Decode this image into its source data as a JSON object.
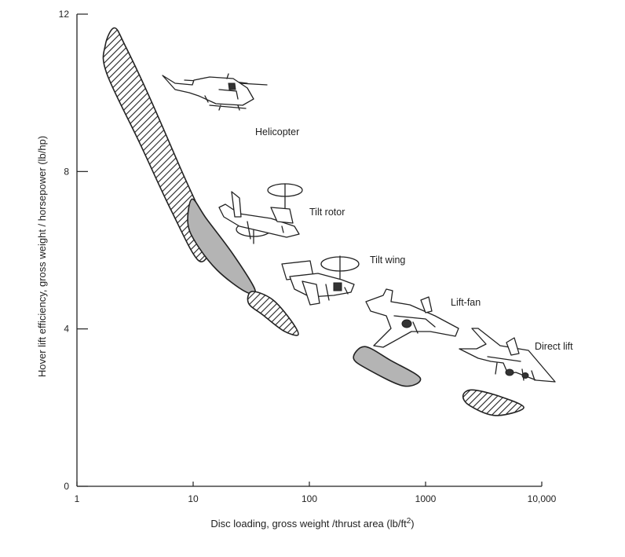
{
  "chart_data": {
    "type": "scatter",
    "title": "",
    "xlabel": "Disc loading, gross weight /thrust area (lb/ft",
    "xlabel_superscript": "2",
    "xlabel_suffix": ")",
    "ylabel": "Hover lift efficiency, gross weight / horsepower (lb/hp)",
    "x_scale": "log",
    "xlim": [
      1,
      10000
    ],
    "ylim": [
      0,
      12
    ],
    "x_ticks": [
      {
        "value": 1,
        "label": "1"
      },
      {
        "value": 10,
        "label": "10"
      },
      {
        "value": 100,
        "label": "100"
      },
      {
        "value": 1000,
        "label": "1000"
      },
      {
        "value": 10000,
        "label": "10,000"
      }
    ],
    "y_ticks": [
      {
        "value": 0,
        "label": "0"
      },
      {
        "value": 4,
        "label": "4"
      },
      {
        "value": 8,
        "label": "8"
      },
      {
        "value": 12,
        "label": "12"
      }
    ],
    "grid": false,
    "legend": "none",
    "colors": {
      "hatched_region": "#ffffff",
      "shaded_region": "#b4b4b4",
      "outline": "#222222"
    },
    "series": [
      {
        "name": "Helicopter",
        "fill": "hatched",
        "icon": "helicopter-icon",
        "outline": [
          [
            2.1,
            11.65
          ],
          [
            2.6,
            11.2
          ],
          [
            4.2,
            9.9
          ],
          [
            8.0,
            8.0
          ],
          [
            13.0,
            6.6
          ],
          [
            14.0,
            6.05
          ],
          [
            11.0,
            5.75
          ],
          [
            6.5,
            7.0
          ],
          [
            3.5,
            8.7
          ],
          [
            1.8,
            10.5
          ],
          [
            1.75,
            11.2
          ]
        ]
      },
      {
        "name": "Tilt rotor",
        "fill": "shaded",
        "icon": "tilt-rotor-icon",
        "outline": [
          [
            9.8,
            7.3
          ],
          [
            13.0,
            6.8
          ],
          [
            22.0,
            5.9
          ],
          [
            34.0,
            5.0
          ],
          [
            28.0,
            4.95
          ],
          [
            16.0,
            5.5
          ],
          [
            10.5,
            6.2
          ],
          [
            9.0,
            6.7
          ]
        ]
      },
      {
        "name": "Tilt wing",
        "fill": "hatched",
        "icon": "tilt-wing-icon",
        "outline": [
          [
            32.0,
            4.95
          ],
          [
            48.0,
            4.75
          ],
          [
            70.0,
            4.2
          ],
          [
            80.0,
            3.85
          ],
          [
            60.0,
            3.95
          ],
          [
            40.0,
            4.35
          ],
          [
            30.0,
            4.65
          ]
        ]
      },
      {
        "name": "Lift-fan",
        "fill": "shaded",
        "icon": "lift-fan-icon",
        "outline": [
          [
            300,
            3.55
          ],
          [
            500,
            3.2
          ],
          [
            900,
            2.75
          ],
          [
            650,
            2.55
          ],
          [
            330,
            2.95
          ],
          [
            240,
            3.25
          ]
        ]
      },
      {
        "name": "Direct lift",
        "fill": "hatched",
        "icon": "direct-lift-icon",
        "outline": [
          [
            2500,
            2.45
          ],
          [
            4200,
            2.3
          ],
          [
            7000,
            2.0
          ],
          [
            4000,
            1.8
          ],
          [
            2400,
            2.05
          ],
          [
            2100,
            2.3
          ]
        ]
      }
    ]
  }
}
